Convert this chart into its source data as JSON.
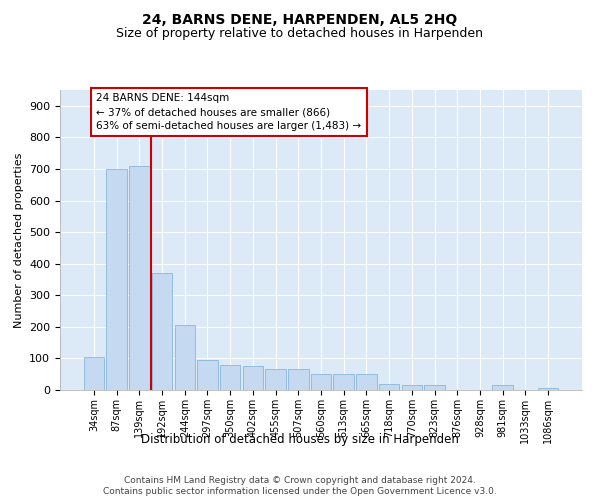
{
  "title": "24, BARNS DENE, HARPENDEN, AL5 2HQ",
  "subtitle": "Size of property relative to detached houses in Harpenden",
  "xlabel": "Distribution of detached houses by size in Harpenden",
  "ylabel": "Number of detached properties",
  "bar_color": "#c5d9f0",
  "bar_edge_color": "#7bafd4",
  "plot_bg_color": "#dce9f7",
  "categories": [
    "34sqm",
    "87sqm",
    "139sqm",
    "192sqm",
    "244sqm",
    "297sqm",
    "350sqm",
    "402sqm",
    "455sqm",
    "507sqm",
    "560sqm",
    "613sqm",
    "665sqm",
    "718sqm",
    "770sqm",
    "823sqm",
    "876sqm",
    "928sqm",
    "981sqm",
    "1033sqm",
    "1086sqm"
  ],
  "values": [
    105,
    700,
    710,
    370,
    205,
    95,
    80,
    75,
    65,
    65,
    50,
    50,
    50,
    20,
    15,
    15,
    0,
    0,
    15,
    0,
    5
  ],
  "property_line_x": 2.5,
  "annotation_text": "24 BARNS DENE: 144sqm\n← 37% of detached houses are smaller (866)\n63% of semi-detached houses are larger (1,483) →",
  "annotation_box_color": "#ffffff",
  "annotation_border_color": "#cc0000",
  "vline_color": "#cc0000",
  "ylim": [
    0,
    950
  ],
  "yticks": [
    0,
    100,
    200,
    300,
    400,
    500,
    600,
    700,
    800,
    900
  ],
  "footer_line1": "Contains HM Land Registry data © Crown copyright and database right 2024.",
  "footer_line2": "Contains public sector information licensed under the Open Government Licence v3.0.",
  "title_fontsize": 10,
  "subtitle_fontsize": 9,
  "xlabel_fontsize": 8.5,
  "ylabel_fontsize": 8,
  "tick_fontsize": 7,
  "ytick_fontsize": 8,
  "annotation_fontsize": 7.5,
  "footer_fontsize": 6.5
}
